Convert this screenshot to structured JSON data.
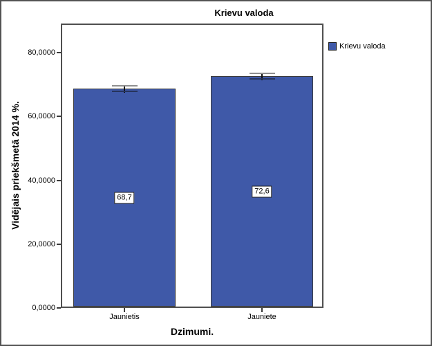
{
  "chart_data": {
    "type": "bar",
    "title": "Krievu valoda",
    "categories": [
      "Jaunietis",
      "Jauniete"
    ],
    "series": [
      {
        "name": "Krievu valoda",
        "values": [
          68.7,
          72.6
        ],
        "errors": [
          0.9,
          0.9
        ],
        "value_labels": [
          "68,7",
          "72,6"
        ]
      }
    ],
    "xlabel": "Dzimumi.",
    "ylabel": "Vidējais priekšmetā 2014 %.",
    "ylim": [
      0,
      89
    ],
    "yticks": [
      0,
      20,
      40,
      60,
      80
    ],
    "ytick_labels": [
      "0,0000",
      "20,0000",
      "40,0000",
      "60,0000",
      "80,0000"
    ],
    "grid": false,
    "legend": {
      "position": "right",
      "entries": [
        {
          "label": "Krievu valoda",
          "color": "#3F59A8"
        }
      ]
    },
    "colors": {
      "bar_fill": "#3F59A8",
      "bar_border": "#3a3a3a",
      "frame": "#4f4f4f",
      "error_line": "#111111",
      "error_top_cap": "#8f8f8f",
      "error_bottom_cap": "#26345c",
      "tick": "#3a3a3a"
    }
  }
}
